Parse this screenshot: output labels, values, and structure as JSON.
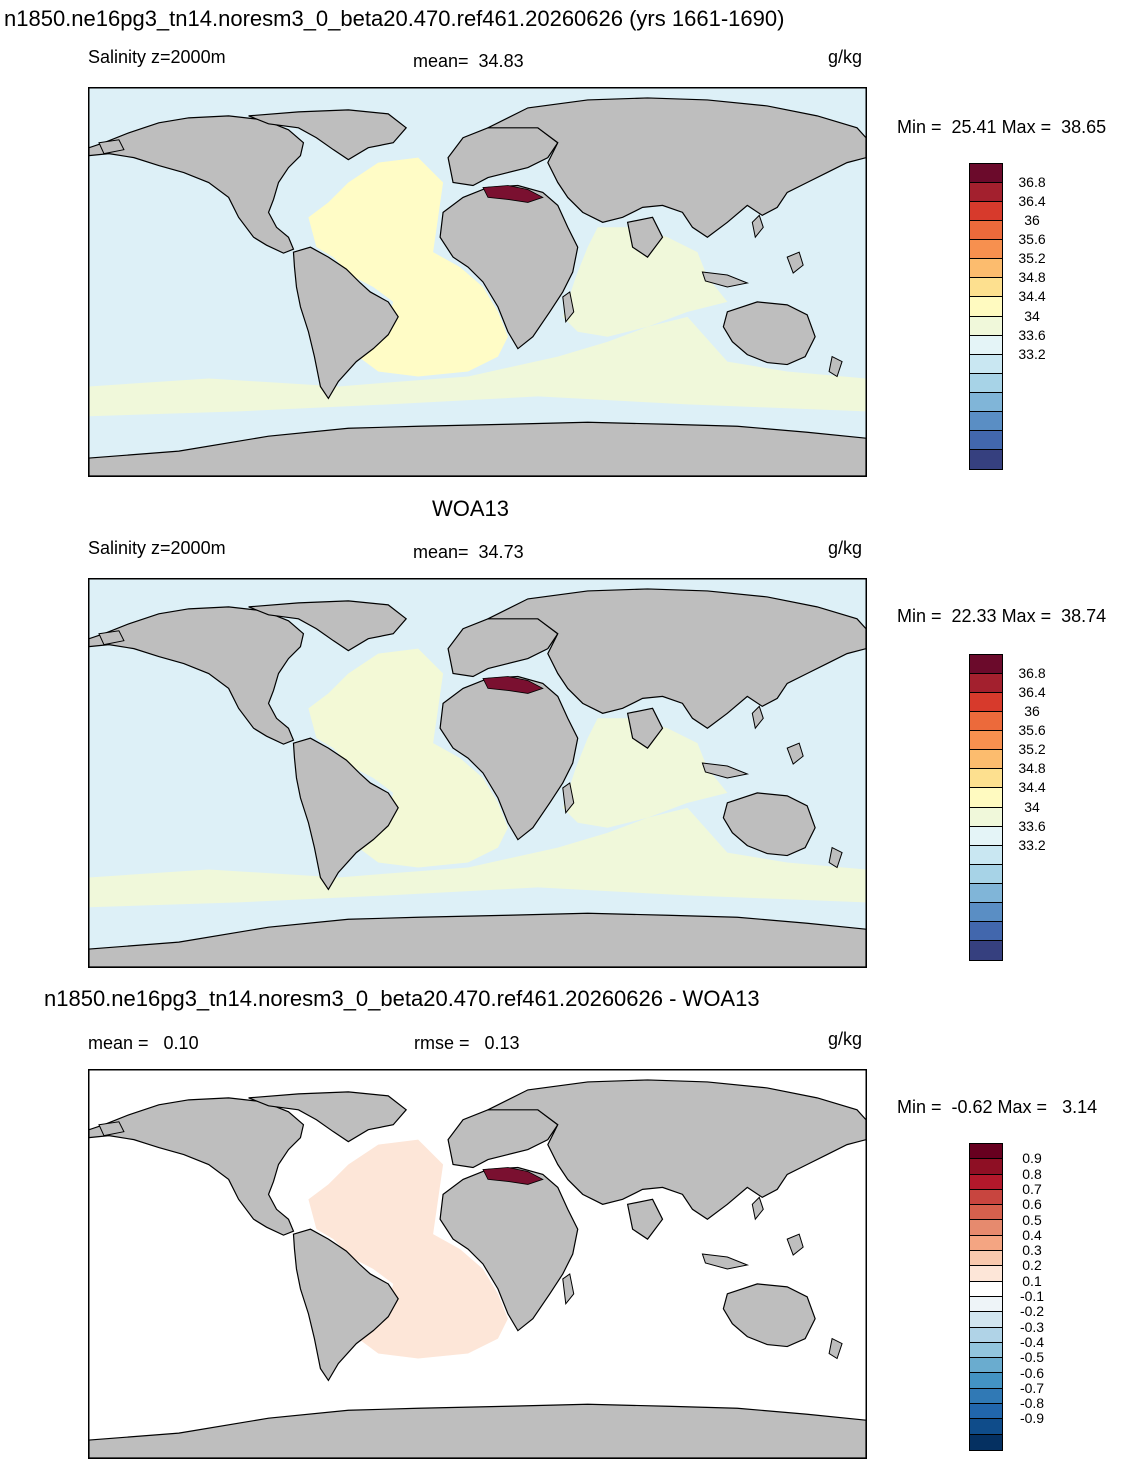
{
  "top_title": "n1850.ne16pg3_tn14.noresm3_0_beta20.470.ref461.20260626 (yrs 1661-1690)",
  "panels": [
    {
      "title": "",
      "left_label": "Salinity z=2000m",
      "center_label": "mean=  34.83",
      "units": "g/kg",
      "minmax": "Min =  25.41 Max =  38.65",
      "colorbar": {
        "colors": [
          "#6b0a2b",
          "#a3202e",
          "#d73a2c",
          "#ec6a3b",
          "#f7904f",
          "#fcbc6e",
          "#fde08f",
          "#fffac0",
          "#f0f8da",
          "#e4f4f7",
          "#c9e7f2",
          "#a7d3e7",
          "#80b5d8",
          "#5a8ec4",
          "#4267ad",
          "#36407f"
        ],
        "ticks": [
          "36.8",
          "36.4",
          "36",
          "35.6",
          "35.2",
          "34.8",
          "34.4",
          "34",
          "33.6",
          "33.2"
        ]
      },
      "fill_colors": {
        "ocean": "#ddf0f7",
        "atlantic": "#fffcc6",
        "indian": "#f0f8da",
        "land": "#bebebe"
      }
    },
    {
      "title": "WOA13",
      "left_label": "Salinity z=2000m",
      "center_label": "mean=  34.73",
      "units": "g/kg",
      "minmax": "Min =  22.33 Max =  38.74",
      "colorbar": {
        "colors": [
          "#6b0a2b",
          "#a3202e",
          "#d73a2c",
          "#ec6a3b",
          "#f7904f",
          "#fcbc6e",
          "#fde08f",
          "#fffac0",
          "#f0f8da",
          "#e4f4f7",
          "#c9e7f2",
          "#a7d3e7",
          "#80b5d8",
          "#5a8ec4",
          "#4267ad",
          "#36407f"
        ],
        "ticks": [
          "36.8",
          "36.4",
          "36",
          "35.6",
          "35.2",
          "34.8",
          "34.4",
          "34",
          "33.6",
          "33.2"
        ]
      },
      "fill_colors": {
        "ocean": "#ddf0f7",
        "atlantic": "#f3f9d6",
        "indian": "#f0f8da",
        "land": "#bebebe"
      }
    },
    {
      "title": "n1850.ne16pg3_tn14.noresm3_0_beta20.470.ref461.20260626 - WOA13",
      "left_label": "mean =   0.10",
      "center_label": "rmse =   0.13",
      "units": "g/kg",
      "minmax": "Min =  -0.62 Max =   3.14",
      "colorbar": {
        "colors": [
          "#67001f",
          "#8e0f24",
          "#b2182b",
          "#c8453f",
          "#d6604d",
          "#e68a6e",
          "#f4a582",
          "#f9c9ae",
          "#fde6d8",
          "#ffffff",
          "#eef4f8",
          "#d1e5f0",
          "#b0d3e7",
          "#92c5de",
          "#6aaccf",
          "#4393c3",
          "#3079b5",
          "#2166ac",
          "#0f4c8a",
          "#053061"
        ],
        "ticks": [
          "0.9",
          "0.8",
          "0.7",
          "0.6",
          "0.5",
          "0.4",
          "0.3",
          "0.2",
          "0.1",
          "-0.1",
          "-0.2",
          "-0.3",
          "-0.4",
          "-0.5",
          "-0.6",
          "-0.7",
          "-0.8",
          "-0.9"
        ]
      },
      "fill_colors": {
        "ocean": "#ffffff",
        "atlantic": "#fde6d8",
        "indian": "#ffffff",
        "land": "#bebebe"
      }
    }
  ]
}
